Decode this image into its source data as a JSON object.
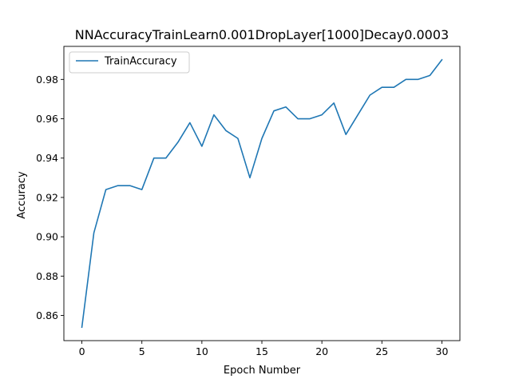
{
  "chart_data": {
    "type": "line",
    "title": "NNAccuracyTrainLearn0.001DropLayer[1000]Decay0.0003",
    "xlabel": "Epoch Number",
    "ylabel": "Accuracy",
    "xlim": [
      -1.5,
      31.5
    ],
    "ylim": [
      0.8472,
      0.9968
    ],
    "xticks": [
      0,
      5,
      10,
      15,
      20,
      25,
      30
    ],
    "xtick_labels": [
      "0",
      "5",
      "10",
      "15",
      "20",
      "25",
      "30"
    ],
    "yticks": [
      0.86,
      0.88,
      0.9,
      0.92,
      0.94,
      0.96,
      0.98
    ],
    "ytick_labels": [
      "0.86",
      "0.88",
      "0.90",
      "0.92",
      "0.94",
      "0.96",
      "0.98"
    ],
    "grid": false,
    "legend": {
      "position": "top-left",
      "entries": [
        "TrainAccuracy"
      ]
    },
    "series": [
      {
        "name": "TrainAccuracy",
        "color": "#1f77b4",
        "x": [
          0,
          1,
          2,
          3,
          4,
          5,
          6,
          7,
          8,
          9,
          10,
          11,
          12,
          13,
          14,
          15,
          16,
          17,
          18,
          19,
          20,
          21,
          22,
          23,
          24,
          25,
          26,
          27,
          28,
          29,
          30
        ],
        "y": [
          0.854,
          0.902,
          0.924,
          0.926,
          0.926,
          0.924,
          0.94,
          0.94,
          0.948,
          0.958,
          0.946,
          0.962,
          0.954,
          0.95,
          0.93,
          0.95,
          0.964,
          0.966,
          0.96,
          0.96,
          0.962,
          0.968,
          0.952,
          0.962,
          0.972,
          0.976,
          0.976,
          0.98,
          0.98,
          0.982,
          0.99
        ]
      }
    ]
  }
}
